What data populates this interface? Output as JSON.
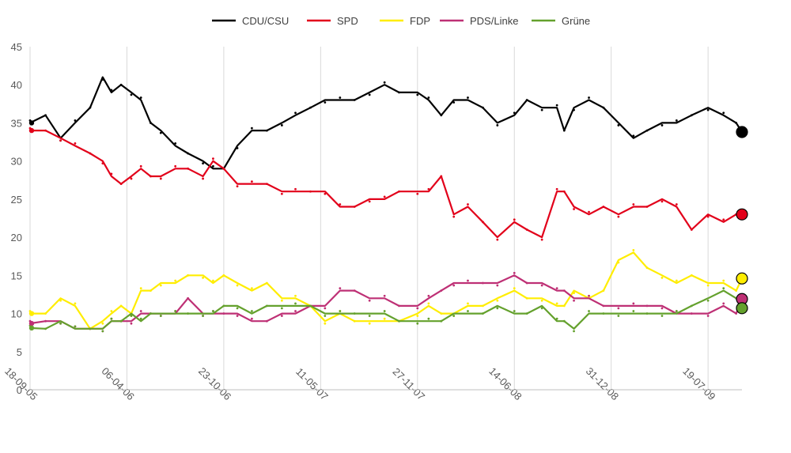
{
  "chart_data": {
    "type": "line",
    "title": "",
    "xlabel": "",
    "ylabel": "",
    "ylim": [
      0,
      45
    ],
    "y_ticks": [
      0,
      5,
      10,
      15,
      20,
      25,
      30,
      35,
      40,
      45
    ],
    "x_range": [
      "2005-09-18",
      "2009-09-27"
    ],
    "x_tick_labels": [
      {
        "date": "2005-09-18",
        "label": "18-09-05"
      },
      {
        "date": "2006-04-06",
        "label": "06-04-06"
      },
      {
        "date": "2006-10-23",
        "label": "23-10-06"
      },
      {
        "date": "2007-05-11",
        "label": "11-05-07"
      },
      {
        "date": "2007-11-27",
        "label": "27-11-07"
      },
      {
        "date": "2008-06-14",
        "label": "14-06-08"
      },
      {
        "date": "2008-12-31",
        "label": "31-12-08"
      },
      {
        "date": "2009-07-19",
        "label": "19-07-09"
      }
    ],
    "grid": {
      "vertical": true,
      "horizontal": false
    },
    "legend_position": "top",
    "series": [
      {
        "name": "CDU/CSU",
        "color": "#000000",
        "points": [
          [
            "2005-09-18",
            35
          ],
          [
            "2005-10-20",
            36
          ],
          [
            "2005-11-20",
            33
          ],
          [
            "2005-12-20",
            35
          ],
          [
            "2006-01-20",
            37
          ],
          [
            "2006-02-15",
            41
          ],
          [
            "2006-03-05",
            39
          ],
          [
            "2006-03-25",
            40
          ],
          [
            "2006-04-15",
            39
          ],
          [
            "2006-05-05",
            38
          ],
          [
            "2006-05-25",
            35
          ],
          [
            "2006-06-15",
            34
          ],
          [
            "2006-07-15",
            32
          ],
          [
            "2006-08-10",
            31
          ],
          [
            "2006-09-10",
            30
          ],
          [
            "2006-10-01",
            29
          ],
          [
            "2006-10-23",
            29
          ],
          [
            "2006-11-20",
            32
          ],
          [
            "2006-12-20",
            34
          ],
          [
            "2007-01-20",
            34
          ],
          [
            "2007-02-20",
            35
          ],
          [
            "2007-03-20",
            36
          ],
          [
            "2007-04-20",
            37
          ],
          [
            "2007-05-20",
            38
          ],
          [
            "2007-06-20",
            38
          ],
          [
            "2007-07-20",
            38
          ],
          [
            "2007-08-20",
            39
          ],
          [
            "2007-09-20",
            40
          ],
          [
            "2007-10-20",
            39
          ],
          [
            "2007-11-27",
            39
          ],
          [
            "2007-12-20",
            38
          ],
          [
            "2008-01-15",
            36
          ],
          [
            "2008-02-10",
            38
          ],
          [
            "2008-03-10",
            38
          ],
          [
            "2008-04-10",
            37
          ],
          [
            "2008-05-10",
            35
          ],
          [
            "2008-06-14",
            36
          ],
          [
            "2008-07-10",
            38
          ],
          [
            "2008-08-10",
            37
          ],
          [
            "2008-09-10",
            37
          ],
          [
            "2008-09-25",
            34
          ],
          [
            "2008-10-15",
            37
          ],
          [
            "2008-11-15",
            38
          ],
          [
            "2008-12-15",
            37
          ],
          [
            "2009-01-15",
            35
          ],
          [
            "2009-02-15",
            33
          ],
          [
            "2009-03-15",
            34
          ],
          [
            "2009-04-15",
            35
          ],
          [
            "2009-05-15",
            35
          ],
          [
            "2009-06-15",
            36
          ],
          [
            "2009-07-19",
            37
          ],
          [
            "2009-08-20",
            36
          ],
          [
            "2009-09-15",
            35
          ],
          [
            "2009-09-27",
            33.8
          ]
        ]
      },
      {
        "name": "SPD",
        "color": "#e2001a",
        "points": [
          [
            "2005-09-18",
            34
          ],
          [
            "2005-10-20",
            34
          ],
          [
            "2005-11-20",
            33
          ],
          [
            "2005-12-20",
            32
          ],
          [
            "2006-01-20",
            31
          ],
          [
            "2006-02-15",
            30
          ],
          [
            "2006-03-05",
            28
          ],
          [
            "2006-03-25",
            27
          ],
          [
            "2006-04-15",
            28
          ],
          [
            "2006-05-05",
            29
          ],
          [
            "2006-05-25",
            28
          ],
          [
            "2006-06-15",
            28
          ],
          [
            "2006-07-15",
            29
          ],
          [
            "2006-08-10",
            29
          ],
          [
            "2006-09-10",
            28
          ],
          [
            "2006-10-01",
            30
          ],
          [
            "2006-10-23",
            29
          ],
          [
            "2006-11-20",
            27
          ],
          [
            "2006-12-20",
            27
          ],
          [
            "2007-01-20",
            27
          ],
          [
            "2007-02-20",
            26
          ],
          [
            "2007-03-20",
            26
          ],
          [
            "2007-04-20",
            26
          ],
          [
            "2007-05-20",
            26
          ],
          [
            "2007-06-20",
            24
          ],
          [
            "2007-07-20",
            24
          ],
          [
            "2007-08-20",
            25
          ],
          [
            "2007-09-20",
            25
          ],
          [
            "2007-10-20",
            26
          ],
          [
            "2007-11-27",
            26
          ],
          [
            "2007-12-20",
            26
          ],
          [
            "2008-01-15",
            28
          ],
          [
            "2008-02-10",
            23
          ],
          [
            "2008-03-10",
            24
          ],
          [
            "2008-04-10",
            22
          ],
          [
            "2008-05-10",
            20
          ],
          [
            "2008-06-14",
            22
          ],
          [
            "2008-07-10",
            21
          ],
          [
            "2008-08-10",
            20
          ],
          [
            "2008-09-10",
            26
          ],
          [
            "2008-09-25",
            26
          ],
          [
            "2008-10-15",
            24
          ],
          [
            "2008-11-15",
            23
          ],
          [
            "2008-12-15",
            24
          ],
          [
            "2009-01-15",
            23
          ],
          [
            "2009-02-15",
            24
          ],
          [
            "2009-03-15",
            24
          ],
          [
            "2009-04-15",
            25
          ],
          [
            "2009-05-15",
            24
          ],
          [
            "2009-06-15",
            21
          ],
          [
            "2009-07-19",
            23
          ],
          [
            "2009-08-20",
            22
          ],
          [
            "2009-09-15",
            23
          ],
          [
            "2009-09-27",
            23
          ]
        ]
      },
      {
        "name": "FDP",
        "color": "#ffed00",
        "points": [
          [
            "2005-09-18",
            10
          ],
          [
            "2005-10-20",
            10
          ],
          [
            "2005-11-20",
            12
          ],
          [
            "2005-12-20",
            11
          ],
          [
            "2006-01-20",
            8
          ],
          [
            "2006-02-15",
            9
          ],
          [
            "2006-03-05",
            10
          ],
          [
            "2006-03-25",
            11
          ],
          [
            "2006-04-15",
            10
          ],
          [
            "2006-05-05",
            13
          ],
          [
            "2006-05-25",
            13
          ],
          [
            "2006-06-15",
            14
          ],
          [
            "2006-07-15",
            14
          ],
          [
            "2006-08-10",
            15
          ],
          [
            "2006-09-10",
            15
          ],
          [
            "2006-10-01",
            14
          ],
          [
            "2006-10-23",
            15
          ],
          [
            "2006-11-20",
            14
          ],
          [
            "2006-12-20",
            13
          ],
          [
            "2007-01-20",
            14
          ],
          [
            "2007-02-20",
            12
          ],
          [
            "2007-03-20",
            12
          ],
          [
            "2007-04-20",
            11
          ],
          [
            "2007-05-20",
            9
          ],
          [
            "2007-06-20",
            10
          ],
          [
            "2007-07-20",
            9
          ],
          [
            "2007-08-20",
            9
          ],
          [
            "2007-09-20",
            9
          ],
          [
            "2007-10-20",
            9
          ],
          [
            "2007-11-27",
            10
          ],
          [
            "2007-12-20",
            11
          ],
          [
            "2008-01-15",
            10
          ],
          [
            "2008-02-10",
            10
          ],
          [
            "2008-03-10",
            11
          ],
          [
            "2008-04-10",
            11
          ],
          [
            "2008-05-10",
            12
          ],
          [
            "2008-06-14",
            13
          ],
          [
            "2008-07-10",
            12
          ],
          [
            "2008-08-10",
            12
          ],
          [
            "2008-09-10",
            11
          ],
          [
            "2008-09-25",
            11
          ],
          [
            "2008-10-15",
            13
          ],
          [
            "2008-11-15",
            12
          ],
          [
            "2008-12-15",
            13
          ],
          [
            "2009-01-15",
            17
          ],
          [
            "2009-02-15",
            18
          ],
          [
            "2009-03-15",
            16
          ],
          [
            "2009-04-15",
            15
          ],
          [
            "2009-05-15",
            14
          ],
          [
            "2009-06-15",
            15
          ],
          [
            "2009-07-19",
            14
          ],
          [
            "2009-08-20",
            14
          ],
          [
            "2009-09-15",
            13
          ],
          [
            "2009-09-27",
            14.6
          ]
        ]
      },
      {
        "name": "PDS/Linke",
        "color": "#be3075",
        "points": [
          [
            "2005-09-18",
            8.7
          ],
          [
            "2005-10-20",
            9
          ],
          [
            "2005-11-20",
            9
          ],
          [
            "2005-12-20",
            8
          ],
          [
            "2006-01-20",
            8
          ],
          [
            "2006-02-15",
            8
          ],
          [
            "2006-03-05",
            9
          ],
          [
            "2006-03-25",
            9
          ],
          [
            "2006-04-15",
            9
          ],
          [
            "2006-05-05",
            10
          ],
          [
            "2006-05-25",
            10
          ],
          [
            "2006-06-15",
            10
          ],
          [
            "2006-07-15",
            10
          ],
          [
            "2006-08-10",
            12
          ],
          [
            "2006-09-10",
            10
          ],
          [
            "2006-10-01",
            10
          ],
          [
            "2006-10-23",
            10
          ],
          [
            "2006-11-20",
            10
          ],
          [
            "2006-12-20",
            9
          ],
          [
            "2007-01-20",
            9
          ],
          [
            "2007-02-20",
            10
          ],
          [
            "2007-03-20",
            10
          ],
          [
            "2007-04-20",
            11
          ],
          [
            "2007-05-20",
            11
          ],
          [
            "2007-06-20",
            13
          ],
          [
            "2007-07-20",
            13
          ],
          [
            "2007-08-20",
            12
          ],
          [
            "2007-09-20",
            12
          ],
          [
            "2007-10-20",
            11
          ],
          [
            "2007-11-27",
            11
          ],
          [
            "2007-12-20",
            12
          ],
          [
            "2008-01-15",
            13
          ],
          [
            "2008-02-10",
            14
          ],
          [
            "2008-03-10",
            14
          ],
          [
            "2008-04-10",
            14
          ],
          [
            "2008-05-10",
            14
          ],
          [
            "2008-06-14",
            15
          ],
          [
            "2008-07-10",
            14
          ],
          [
            "2008-08-10",
            14
          ],
          [
            "2008-09-10",
            13
          ],
          [
            "2008-09-25",
            13
          ],
          [
            "2008-10-15",
            12
          ],
          [
            "2008-11-15",
            12
          ],
          [
            "2008-12-15",
            11
          ],
          [
            "2009-01-15",
            11
          ],
          [
            "2009-02-15",
            11
          ],
          [
            "2009-03-15",
            11
          ],
          [
            "2009-04-15",
            11
          ],
          [
            "2009-05-15",
            10
          ],
          [
            "2009-06-15",
            10
          ],
          [
            "2009-07-19",
            10
          ],
          [
            "2009-08-20",
            11
          ],
          [
            "2009-09-15",
            10
          ],
          [
            "2009-09-27",
            11.9
          ]
        ]
      },
      {
        "name": "Grüne",
        "color": "#64a12d",
        "points": [
          [
            "2005-09-18",
            8.1
          ],
          [
            "2005-10-20",
            8
          ],
          [
            "2005-11-20",
            9
          ],
          [
            "2005-12-20",
            8
          ],
          [
            "2006-01-20",
            8
          ],
          [
            "2006-02-15",
            8
          ],
          [
            "2006-03-05",
            9
          ],
          [
            "2006-03-25",
            9
          ],
          [
            "2006-04-15",
            10
          ],
          [
            "2006-05-05",
            9
          ],
          [
            "2006-05-25",
            10
          ],
          [
            "2006-06-15",
            10
          ],
          [
            "2006-07-15",
            10
          ],
          [
            "2006-08-10",
            10
          ],
          [
            "2006-09-10",
            10
          ],
          [
            "2006-10-01",
            10
          ],
          [
            "2006-10-23",
            11
          ],
          [
            "2006-11-20",
            11
          ],
          [
            "2006-12-20",
            10
          ],
          [
            "2007-01-20",
            11
          ],
          [
            "2007-02-20",
            11
          ],
          [
            "2007-03-20",
            11
          ],
          [
            "2007-04-20",
            11
          ],
          [
            "2007-05-20",
            10
          ],
          [
            "2007-06-20",
            10
          ],
          [
            "2007-07-20",
            10
          ],
          [
            "2007-08-20",
            10
          ],
          [
            "2007-09-20",
            10
          ],
          [
            "2007-10-20",
            9
          ],
          [
            "2007-11-27",
            9
          ],
          [
            "2007-12-20",
            9
          ],
          [
            "2008-01-15",
            9
          ],
          [
            "2008-02-10",
            10
          ],
          [
            "2008-03-10",
            10
          ],
          [
            "2008-04-10",
            10
          ],
          [
            "2008-05-10",
            11
          ],
          [
            "2008-06-14",
            10
          ],
          [
            "2008-07-10",
            10
          ],
          [
            "2008-08-10",
            11
          ],
          [
            "2008-09-10",
            9
          ],
          [
            "2008-09-25",
            9
          ],
          [
            "2008-10-15",
            8
          ],
          [
            "2008-11-15",
            10
          ],
          [
            "2008-12-15",
            10
          ],
          [
            "2009-01-15",
            10
          ],
          [
            "2009-02-15",
            10
          ],
          [
            "2009-03-15",
            10
          ],
          [
            "2009-04-15",
            10
          ],
          [
            "2009-05-15",
            10
          ],
          [
            "2009-06-15",
            11
          ],
          [
            "2009-07-19",
            12
          ],
          [
            "2009-08-20",
            13
          ],
          [
            "2009-09-15",
            12
          ],
          [
            "2009-09-27",
            10.7
          ]
        ]
      }
    ]
  }
}
